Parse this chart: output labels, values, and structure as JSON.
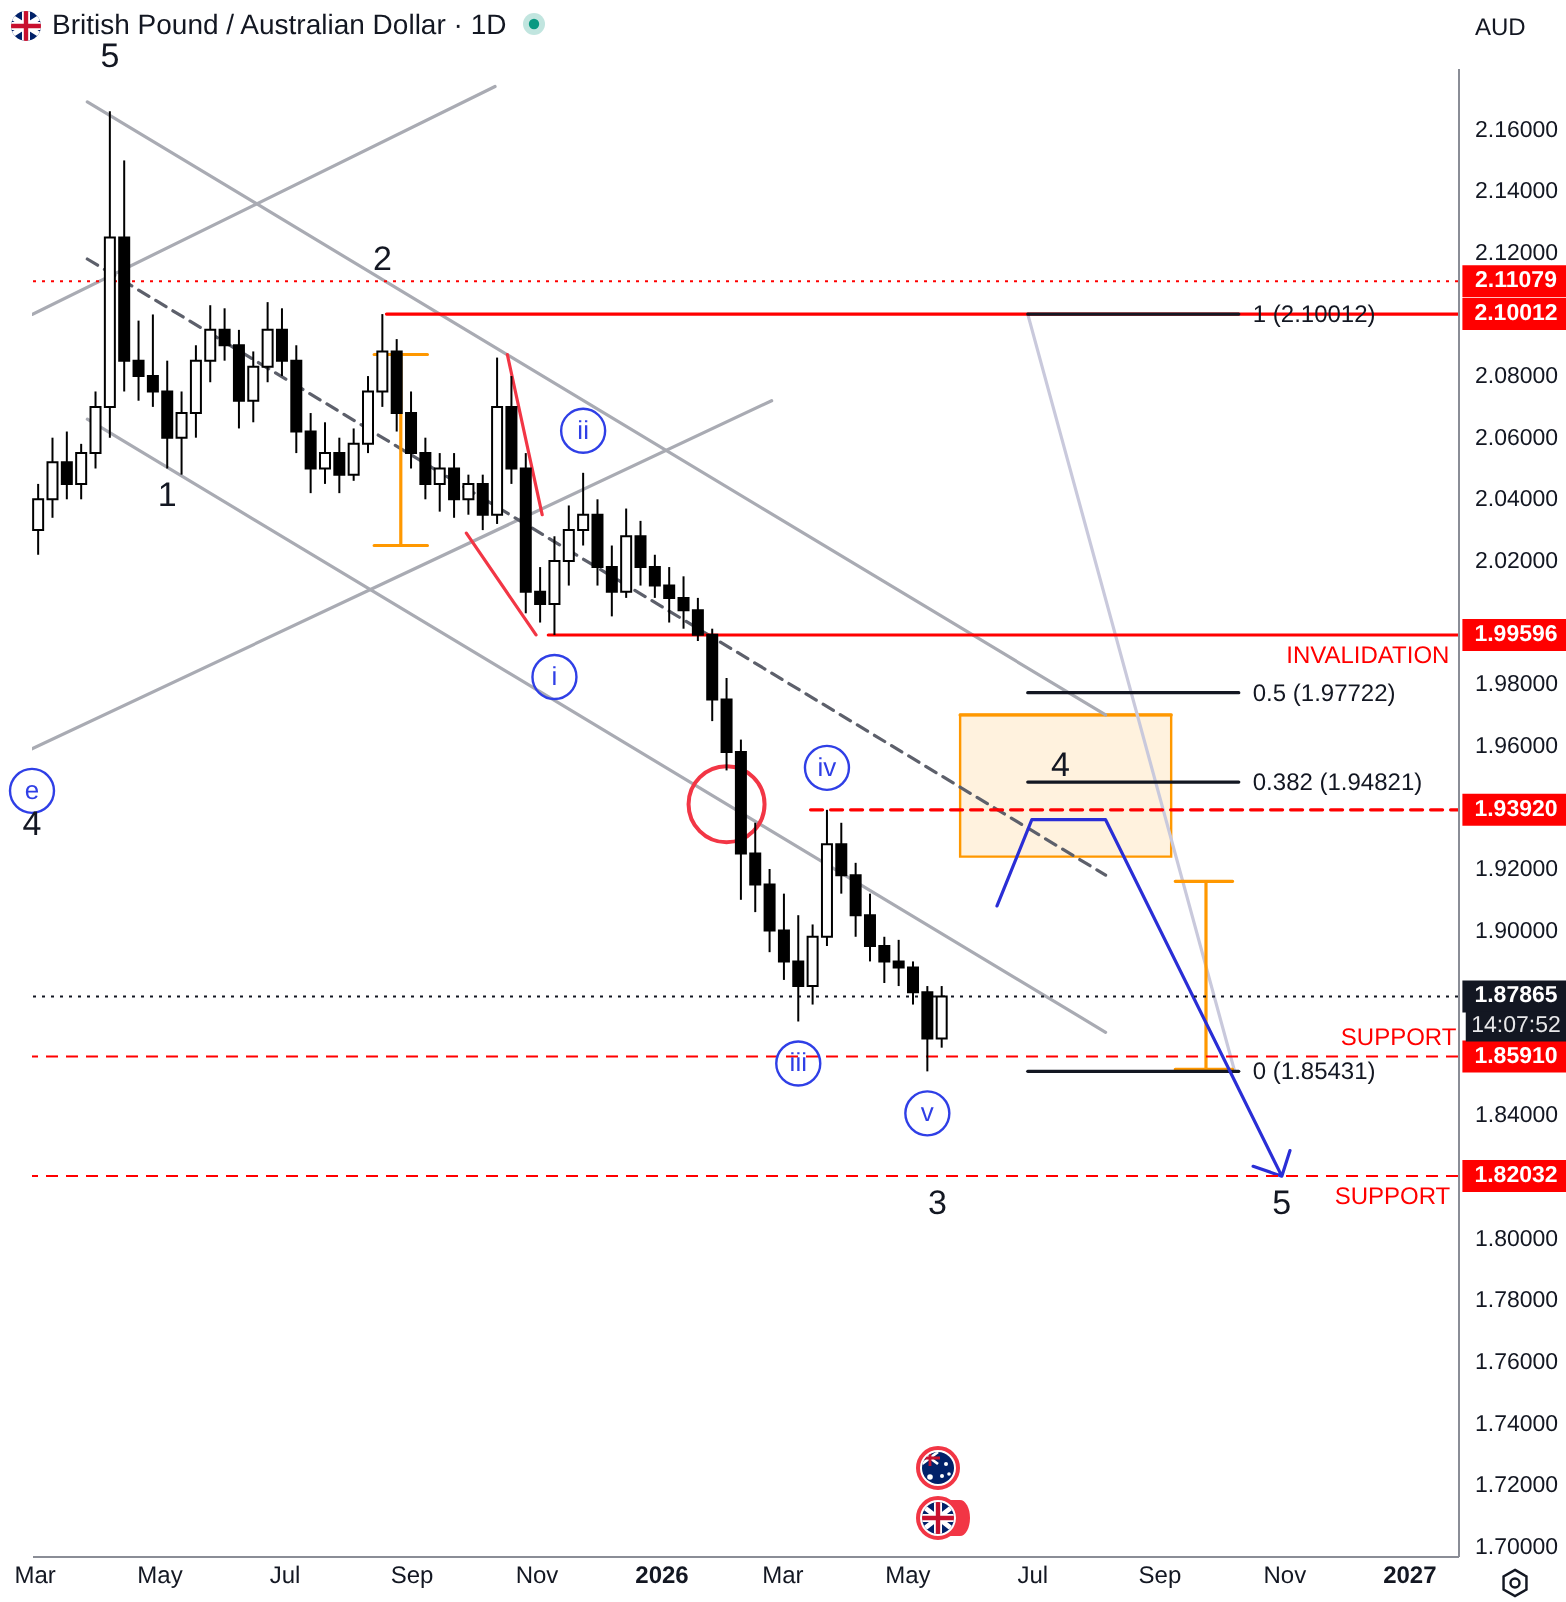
{
  "chart_data": {
    "type": "candlestick",
    "title": "British Pound / Australian Dollar · 1D",
    "ylabel": "AUD",
    "color": "#000000",
    "x": [
      "2025-03-03",
      "2025-03-10",
      "2025-03-17",
      "2025-03-24",
      "2025-03-31",
      "2025-04-07",
      "2025-04-14",
      "2025-04-21",
      "2025-04-28",
      "2025-05-05",
      "2025-05-12",
      "2025-05-19",
      "2025-05-26",
      "2025-06-02",
      "2025-06-09",
      "2025-06-16",
      "2025-06-23",
      "2025-06-30",
      "2025-07-07",
      "2025-07-14",
      "2025-07-21",
      "2025-07-28",
      "2025-08-04",
      "2025-08-11",
      "2025-08-18",
      "2025-08-25",
      "2025-09-01",
      "2025-09-08",
      "2025-09-15",
      "2025-09-22",
      "2025-09-29",
      "2025-10-06",
      "2025-10-13",
      "2025-10-20",
      "2025-10-27",
      "2025-11-03",
      "2025-11-10",
      "2025-11-17",
      "2025-11-24",
      "2025-12-01",
      "2025-12-08",
      "2025-12-15",
      "2025-12-22",
      "2025-12-29",
      "2026-01-05",
      "2026-01-12",
      "2026-01-19",
      "2026-01-26",
      "2026-02-02",
      "2026-02-09",
      "2026-02-16",
      "2026-02-23",
      "2026-03-02",
      "2026-03-09",
      "2026-03-16",
      "2026-03-23",
      "2026-03-30",
      "2026-04-06",
      "2026-04-13",
      "2026-04-20",
      "2026-04-27",
      "2026-05-04",
      "2026-05-11",
      "2026-05-18"
    ],
    "ohlc": [
      [
        2.03,
        2.045,
        2.022,
        2.04
      ],
      [
        2.04,
        2.06,
        2.034,
        2.052
      ],
      [
        2.052,
        2.062,
        2.04,
        2.045
      ],
      [
        2.045,
        2.058,
        2.04,
        2.055
      ],
      [
        2.055,
        2.075,
        2.05,
        2.07
      ],
      [
        2.07,
        2.166,
        2.06,
        2.125
      ],
      [
        2.125,
        2.15,
        2.075,
        2.085
      ],
      [
        2.085,
        2.098,
        2.072,
        2.08
      ],
      [
        2.08,
        2.1,
        2.07,
        2.075
      ],
      [
        2.075,
        2.085,
        2.05,
        2.06
      ],
      [
        2.06,
        2.075,
        2.048,
        2.068
      ],
      [
        2.068,
        2.09,
        2.06,
        2.085
      ],
      [
        2.085,
        2.103,
        2.078,
        2.095
      ],
      [
        2.095,
        2.102,
        2.085,
        2.09
      ],
      [
        2.09,
        2.095,
        2.063,
        2.072
      ],
      [
        2.072,
        2.088,
        2.065,
        2.083
      ],
      [
        2.083,
        2.104,
        2.078,
        2.095
      ],
      [
        2.095,
        2.102,
        2.08,
        2.085
      ],
      [
        2.085,
        2.09,
        2.055,
        2.062
      ],
      [
        2.062,
        2.068,
        2.042,
        2.05
      ],
      [
        2.05,
        2.065,
        2.045,
        2.055
      ],
      [
        2.055,
        2.06,
        2.042,
        2.048
      ],
      [
        2.048,
        2.063,
        2.046,
        2.058
      ],
      [
        2.058,
        2.08,
        2.055,
        2.075
      ],
      [
        2.075,
        2.10012,
        2.07,
        2.088
      ],
      [
        2.088,
        2.092,
        2.062,
        2.068
      ],
      [
        2.068,
        2.075,
        2.05,
        2.055
      ],
      [
        2.055,
        2.06,
        2.04,
        2.045
      ],
      [
        2.045,
        2.055,
        2.036,
        2.05
      ],
      [
        2.05,
        2.055,
        2.034,
        2.04
      ],
      [
        2.04,
        2.048,
        2.035,
        2.045
      ],
      [
        2.045,
        2.048,
        2.03,
        2.035
      ],
      [
        2.035,
        2.086,
        2.032,
        2.07
      ],
      [
        2.07,
        2.08,
        2.045,
        2.05
      ],
      [
        2.05,
        2.055,
        2.003,
        2.01
      ],
      [
        2.01,
        2.018,
        2.0,
        2.006
      ],
      [
        2.006,
        2.028,
        1.99596,
        2.02
      ],
      [
        2.02,
        2.038,
        2.012,
        2.03
      ],
      [
        2.03,
        2.0486,
        2.025,
        2.035
      ],
      [
        2.035,
        2.04,
        2.012,
        2.018
      ],
      [
        2.018,
        2.025,
        2.002,
        2.01
      ],
      [
        2.01,
        2.037,
        2.008,
        2.028
      ],
      [
        2.028,
        2.033,
        2.012,
        2.018
      ],
      [
        2.018,
        2.022,
        2.008,
        2.012
      ],
      [
        2.012,
        2.018,
        2.0,
        2.008
      ],
      [
        2.008,
        2.015,
        1.998,
        2.004
      ],
      [
        2.004,
        2.008,
        1.994,
        1.996
      ],
      [
        1.996,
        1.998,
        1.968,
        1.975
      ],
      [
        1.975,
        1.982,
        1.952,
        1.958
      ],
      [
        1.958,
        1.962,
        1.91,
        1.925
      ],
      [
        1.925,
        1.935,
        1.906,
        1.915
      ],
      [
        1.915,
        1.92,
        1.893,
        1.9
      ],
      [
        1.9,
        1.912,
        1.884,
        1.89
      ],
      [
        1.89,
        1.905,
        1.8705,
        1.882
      ],
      [
        1.882,
        1.902,
        1.876,
        1.898
      ],
      [
        1.898,
        1.9392,
        1.895,
        1.928
      ],
      [
        1.928,
        1.935,
        1.912,
        1.918
      ],
      [
        1.918,
        1.922,
        1.898,
        1.905
      ],
      [
        1.905,
        1.912,
        1.89,
        1.895
      ],
      [
        1.895,
        1.898,
        1.883,
        1.89
      ],
      [
        1.89,
        1.897,
        1.882,
        1.888
      ],
      [
        1.888,
        1.89,
        1.876,
        1.88
      ],
      [
        1.88,
        1.882,
        1.85431,
        1.865
      ],
      [
        1.865,
        1.882,
        1.862,
        1.87865
      ]
    ],
    "xlim": [
      "2025-02-28",
      "2027-01-25"
    ],
    "xticks": [
      {
        "value": "2025-03-01",
        "label": "Mar"
      },
      {
        "value": "2025-05-01",
        "label": "May"
      },
      {
        "value": "2025-07-01",
        "label": "Jul"
      },
      {
        "value": "2025-09-01",
        "label": "Sep"
      },
      {
        "value": "2025-11-01",
        "label": "Nov"
      },
      {
        "value": "2026-01-01",
        "label": "2026"
      },
      {
        "value": "2026-03-01",
        "label": "Mar"
      },
      {
        "value": "2026-05-01",
        "label": "May"
      },
      {
        "value": "2026-07-01",
        "label": "Jul"
      },
      {
        "value": "2026-09-01",
        "label": "Sep"
      },
      {
        "value": "2026-11-01",
        "label": "Nov"
      },
      {
        "value": "2027-01-01",
        "label": "2027"
      }
    ],
    "ylim": [
      1.697,
      2.18
    ],
    "yticks": [
      {
        "value": 1.7,
        "label": "1.70000"
      },
      {
        "value": 1.72,
        "label": "1.72000"
      },
      {
        "value": 1.74,
        "label": "1.74000"
      },
      {
        "value": 1.76,
        "label": "1.76000"
      },
      {
        "value": 1.78,
        "label": "1.78000"
      },
      {
        "value": 1.8,
        "label": "1.80000"
      },
      {
        "value": 1.84,
        "label": "1.84000"
      },
      {
        "value": 1.9,
        "label": "1.90000"
      },
      {
        "value": 1.92,
        "label": "1.92000"
      },
      {
        "value": 1.96,
        "label": "1.96000"
      },
      {
        "value": 1.98,
        "label": "1.98000"
      },
      {
        "value": 2.02,
        "label": "2.02000"
      },
      {
        "value": 2.04,
        "label": "2.04000"
      },
      {
        "value": 2.06,
        "label": "2.06000"
      },
      {
        "value": 2.08,
        "label": "2.08000"
      },
      {
        "value": 2.12,
        "label": "2.12000"
      },
      {
        "value": 2.14,
        "label": "2.14000"
      },
      {
        "value": 2.16,
        "label": "2.16000"
      }
    ],
    "series": [
      {
        "type": "line",
        "color": "#ff9800",
        "x": [
          "2026-05-27",
          "2026-09-07"
        ],
        "values": [
          1.97,
          1.97
        ],
        "lower": [
          1.924,
          1.924
        ],
        "upper": [
          1.97,
          1.97
        ]
      },
      {
        "type": "line",
        "color": "#a9abb3",
        "x": [
          "2025-03-27",
          "2026-08-06"
        ],
        "values": [
          2.169,
          1.97
        ]
      },
      {
        "type": "line",
        "color": "#a9abb3",
        "x": [
          "2025-03-27",
          "2026-08-06"
        ],
        "values": [
          2.066,
          1.867
        ]
      },
      {
        "type": "line",
        "color": "#a9abb3",
        "x": [
          "2025-02-28",
          "2025-10-12"
        ],
        "values": [
          2.1,
          2.174
        ]
      },
      {
        "type": "line",
        "color": "#a9abb3",
        "x": [
          "2025-02-28",
          "2026-02-24"
        ],
        "values": [
          1.959,
          2.072
        ]
      },
      {
        "type": "line",
        "color": "#5d606b",
        "line_style": "dashed",
        "x": [
          "2025-03-27",
          "2026-08-06"
        ],
        "values": [
          2.118,
          1.918
        ]
      },
      {
        "type": "line",
        "color": "#c9c9dc",
        "x": [
          "2026-06-29",
          "2026-10-08"
        ],
        "values": [
          2.10012,
          1.85431
        ]
      },
      {
        "type": "line",
        "color": "#f23645",
        "x": [
          "2025-09-28",
          "2025-11-01"
        ],
        "values": [
          2.029,
          1.996
        ]
      },
      {
        "type": "line",
        "color": "#f23645",
        "x": [
          "2025-10-18",
          "2025-11-04"
        ],
        "values": [
          2.087,
          2.035
        ]
      },
      {
        "type": "line",
        "color": "#ff9800",
        "x": [
          "2025-08-14",
          "2025-09-09",
          "2025-08-27",
          "2025-08-27",
          "2025-08-14",
          "2025-09-09"
        ],
        "values": [
          2.087,
          2.087,
          2.087,
          2.025,
          2.025,
          2.025
        ]
      },
      {
        "type": "line",
        "color": "#ff9800",
        "x": [
          "2026-09-09",
          "2026-10-07",
          "2026-09-24",
          "2026-09-24",
          "2026-09-09",
          "2026-10-07"
        ],
        "values": [
          1.916,
          1.916,
          1.916,
          1.855,
          1.855,
          1.855
        ]
      },
      {
        "type": "line",
        "name": "2.10012",
        "color": "#ff0000",
        "x": [
          "2025-08-20",
          "2027-01-25"
        ],
        "values": [
          2.10012,
          2.10012
        ]
      },
      {
        "type": "line",
        "name": "1.99596",
        "color": "#ff0000",
        "x": [
          "2025-11-07",
          "2027-01-25"
        ],
        "values": [
          1.99596,
          1.99596
        ]
      },
      {
        "type": "line",
        "name": "1.93920",
        "color": "#ff0000",
        "line_style": "dashed",
        "x": [
          "2026-03-15",
          "2027-01-25"
        ],
        "values": [
          1.9392,
          1.9392
        ]
      },
      {
        "type": "line",
        "name": "1 (2.10012)",
        "color": "#131722",
        "x": [
          "2026-06-29",
          "2026-10-10"
        ],
        "values": [
          2.10012,
          2.10012
        ]
      },
      {
        "type": "line",
        "name": "0.5 (1.97722)",
        "color": "#131722",
        "x": [
          "2026-06-29",
          "2026-10-10"
        ],
        "values": [
          1.97722,
          1.97722
        ]
      },
      {
        "type": "line",
        "name": "0.382 (1.94821)",
        "color": "#131722",
        "x": [
          "2026-06-29",
          "2026-10-10"
        ],
        "values": [
          1.94821,
          1.94821
        ]
      },
      {
        "type": "line",
        "name": "0 (1.85431)",
        "color": "#131722",
        "x": [
          "2026-06-29",
          "2026-10-10"
        ],
        "values": [
          1.85431,
          1.85431
        ]
      },
      {
        "type": "line",
        "color": "#2a2ed6",
        "x": [
          "2026-06-14",
          "2026-07-01",
          "2026-08-06",
          "2026-10-31",
          "2026-10-17",
          "2026-10-31",
          "2026-11-04"
        ],
        "values": [
          1.908,
          1.936,
          1.936,
          1.8203,
          1.8235,
          1.8203,
          1.8286
        ]
      },
      {
        "type": "scatter",
        "color": "#f23645",
        "marker": "circle",
        "x": [
          "2026-02-02"
        ],
        "values": [
          1.941
        ]
      }
    ],
    "ref_lines": [
      {
        "axis": "y",
        "value": 2.11079,
        "label": "2.11079",
        "color": "#ff0000",
        "line_style": "dotted"
      },
      {
        "axis": "y",
        "value": 1.87865,
        "label": "1.87865",
        "color": "#131722",
        "line_style": "dotted"
      },
      {
        "axis": "y",
        "value": 1.8591,
        "label": "1.85910",
        "color": "#ff0000",
        "line_style": "dashed"
      },
      {
        "axis": "y",
        "value": 1.82032,
        "label": "1.82032",
        "color": "#ff0000",
        "line_style": "dashed"
      }
    ],
    "annotations": [
      {
        "text": "5",
        "x": "2025-04-07",
        "y": 2.166
      },
      {
        "text": "1",
        "x": "2025-05-05",
        "y": 2.05
      },
      {
        "text": "2",
        "x": "2025-08-18",
        "y": 2.10012
      },
      {
        "text": "i",
        "x": "2025-11-10",
        "y": 1.99596
      },
      {
        "text": "ii",
        "x": "2025-11-24",
        "y": 2.0486
      },
      {
        "text": "iii",
        "x": "2026-03-09",
        "y": 1.8705
      },
      {
        "text": "iv",
        "x": "2026-03-23",
        "y": 1.9392
      },
      {
        "text": "v",
        "x": "2026-05-11",
        "y": 1.85431
      },
      {
        "text": "3",
        "x": "2026-05-16",
        "y": 1.82032
      },
      {
        "text": "4",
        "x": "2026-07-15",
        "y": 1.936
      },
      {
        "text": "5",
        "x": "2026-10-31",
        "y": 1.8203
      },
      {
        "text": "e",
        "x": "2025-02-28",
        "y": 1.959
      },
      {
        "text": "4",
        "x": "2025-02-28",
        "y": 1.959
      },
      {
        "text": "INVALIDATION",
        "x": "2026-12-12",
        "y": 1.99596
      },
      {
        "text": "SUPPORT",
        "x": "2026-12-27",
        "y": 1.8591
      },
      {
        "text": "SUPPORT",
        "x": "2026-12-24",
        "y": 1.82032
      },
      "14:07:52"
    ]
  }
}
